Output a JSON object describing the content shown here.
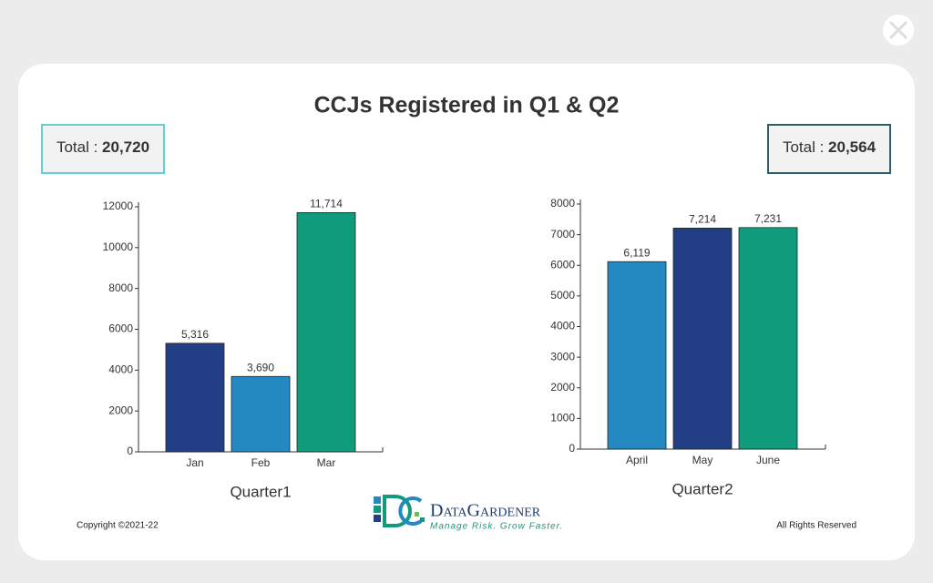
{
  "title": "CCJs Registered in Q1 & Q2",
  "totals": [
    {
      "label": "Total :",
      "value": "20,720"
    },
    {
      "label": "Total :",
      "value": "20,564"
    }
  ],
  "chart_data": [
    {
      "type": "bar",
      "x_label": "Quarter1",
      "categories": [
        "Jan",
        "Feb",
        "Mar"
      ],
      "values": [
        5316,
        3690,
        11714
      ],
      "value_labels": [
        "5,316",
        "3,690",
        "11,714"
      ],
      "colors": [
        "#223f85",
        "#2389c0",
        "#119b7d"
      ],
      "ylim": [
        0,
        12000
      ],
      "yticks": [
        0,
        2000,
        4000,
        6000,
        8000,
        10000,
        12000
      ]
    },
    {
      "type": "bar",
      "x_label": "Quarter2",
      "categories": [
        "April",
        "May",
        "June"
      ],
      "values": [
        6119,
        7214,
        7231
      ],
      "value_labels": [
        "6,119",
        "7,214",
        "7,231"
      ],
      "colors": [
        "#2389c0",
        "#223f85",
        "#119b7d"
      ],
      "ylim": [
        0,
        8000
      ],
      "yticks": [
        0,
        1000,
        2000,
        3000,
        4000,
        5000,
        6000,
        7000,
        8000
      ]
    }
  ],
  "logo": {
    "name": "DataGardener",
    "tagline": "Manage Risk. Grow Faster."
  },
  "footer": {
    "left": "Copyright ©2021-22",
    "right": "All Rights Reserved"
  }
}
